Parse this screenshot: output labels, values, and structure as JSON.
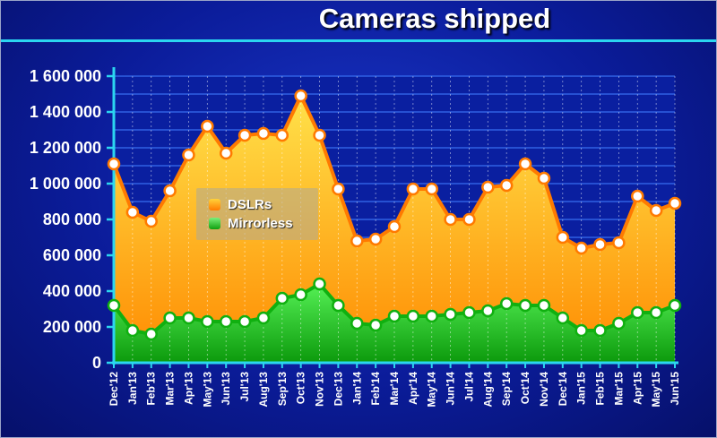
{
  "chart_data": {
    "type": "area",
    "title": "Cameras shipped",
    "categories": [
      "Dec'12",
      "Jan'13",
      "Feb'13",
      "Mar'13",
      "Apr'13",
      "May'13",
      "Jun'13",
      "Jul'13",
      "Aug'13",
      "Sep'13",
      "Oct'13",
      "Nov'13",
      "Dec'13",
      "Jan'14",
      "Feb'14",
      "Mar'14",
      "Apr'14",
      "May'14",
      "Jun'14",
      "Jul'14",
      "Aug'14",
      "Sep'14",
      "Oct'14",
      "Nov'14",
      "Dec'14",
      "Jan'15",
      "Feb'15",
      "Mar'15",
      "Apr'15",
      "May'15",
      "Jun'15"
    ],
    "ylim": [
      0,
      1600000
    ],
    "yticks": [
      0,
      200000,
      400000,
      600000,
      800000,
      1000000,
      1200000,
      1400000,
      1600000
    ],
    "ytick_labels": [
      "0",
      "200 000",
      "400 000",
      "600 000",
      "800 000",
      "1 000 000",
      "1 200 000",
      "1 400 000",
      "1 600 000"
    ],
    "grid": true,
    "legend_position": "upper-left inside plot",
    "series": [
      {
        "name": "DSLRs",
        "color": "#ff7a00",
        "values": [
          1110000,
          840000,
          790000,
          960000,
          1160000,
          1320000,
          1170000,
          1270000,
          1280000,
          1270000,
          1490000,
          1270000,
          970000,
          680000,
          690000,
          760000,
          970000,
          970000,
          800000,
          800000,
          980000,
          990000,
          1110000,
          1030000,
          700000,
          640000,
          660000,
          670000,
          930000,
          850000,
          890000
        ]
      },
      {
        "name": "Mirrorless",
        "color": "#1ec81e",
        "values": [
          320000,
          180000,
          160000,
          250000,
          250000,
          230000,
          230000,
          230000,
          250000,
          360000,
          380000,
          440000,
          320000,
          220000,
          210000,
          260000,
          260000,
          260000,
          270000,
          280000,
          290000,
          330000,
          320000,
          320000,
          250000,
          180000,
          180000,
          220000,
          280000,
          280000,
          320000
        ]
      }
    ]
  }
}
